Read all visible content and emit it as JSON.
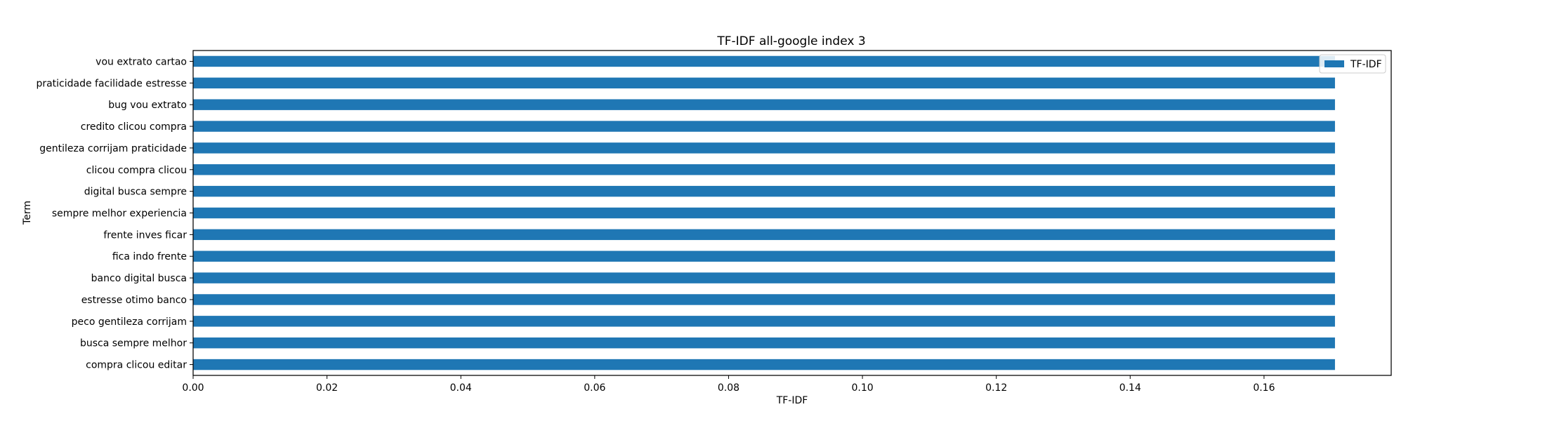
{
  "chart_data": {
    "type": "bar",
    "orientation": "horizontal",
    "title": "TF-IDF all-google index 3",
    "xlabel": "TF-IDF",
    "ylabel": "Term",
    "xlim": [
      0.0,
      0.179
    ],
    "xticks": [
      0.0,
      0.02,
      0.04,
      0.06,
      0.08,
      0.1,
      0.12,
      0.14,
      0.16
    ],
    "xtick_labels": [
      "0.00",
      "0.02",
      "0.04",
      "0.06",
      "0.08",
      "0.10",
      "0.12",
      "0.14",
      "0.16"
    ],
    "categories": [
      "vou extrato cartao",
      "praticidade facilidade estresse",
      "bug vou extrato",
      "credito clicou compra",
      "gentileza corrijam praticidade",
      "clicou compra clicou",
      "digital busca sempre",
      "sempre melhor experiencia",
      "frente inves ficar",
      "fica indo frente",
      "banco digital busca",
      "estresse otimo banco",
      "peco gentileza corrijam",
      "busca sempre melhor",
      "compra clicou editar"
    ],
    "series": [
      {
        "name": "TF-IDF",
        "values": [
          0.1706,
          0.1706,
          0.1706,
          0.1706,
          0.1706,
          0.1706,
          0.1706,
          0.1706,
          0.1706,
          0.1706,
          0.1706,
          0.1706,
          0.1706,
          0.1706,
          0.1706
        ]
      }
    ],
    "legend": {
      "placement": "top-right",
      "entries": [
        "TF-IDF"
      ]
    },
    "grid": false,
    "colors": {
      "bar": "#1f77b4",
      "axis": "#000000",
      "legend_border": "#cccccc"
    }
  }
}
